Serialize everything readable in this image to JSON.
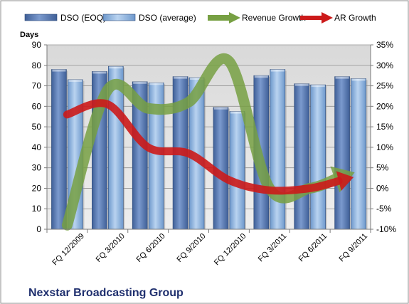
{
  "chart_data": {
    "type": "bar",
    "title": "Nexstar Broadcasting Group",
    "ylabel": "Days",
    "categories": [
      "FQ 12/2009",
      "FQ 3/2010",
      "FQ 6/2010",
      "FQ 9/2010",
      "FQ 12/2010",
      "FQ 3/2011",
      "FQ 6/2011",
      "FQ 9/2011"
    ],
    "y_left": {
      "min": 0,
      "max": 90,
      "step": 10,
      "ticks": [
        "0",
        "10",
        "20",
        "30",
        "40",
        "50",
        "60",
        "70",
        "80",
        "90"
      ]
    },
    "y_right": {
      "min": -10,
      "max": 35,
      "step": 5,
      "ticks": [
        "-10%",
        "-5%",
        "0%",
        "5%",
        "10%",
        "15%",
        "20%",
        "25%",
        "30%",
        "35%"
      ]
    },
    "series": [
      {
        "name": "DSO (EOQ)",
        "type": "bar",
        "axis": "left",
        "color": "#5a7bb0",
        "values": [
          78,
          77,
          72,
          74.5,
          59.5,
          75,
          71,
          74.5
        ]
      },
      {
        "name": "DSO (average)",
        "type": "bar",
        "axis": "left",
        "color": "#8db4e2",
        "values": [
          73,
          79.5,
          71.5,
          74,
          57.5,
          78,
          70.5,
          73.5
        ]
      },
      {
        "name": "Revenue Growth",
        "type": "line",
        "axis": "right",
        "color": "#77a043",
        "values": [
          -9,
          24,
          19.5,
          21,
          31,
          0,
          0,
          3.5
        ]
      },
      {
        "name": "AR Growth",
        "type": "line",
        "axis": "right",
        "color": "#cc1a1a",
        "values": [
          18,
          20.5,
          10,
          8.5,
          2,
          -0.5,
          0,
          2.5
        ]
      }
    ],
    "grid": true,
    "legend": "top"
  }
}
